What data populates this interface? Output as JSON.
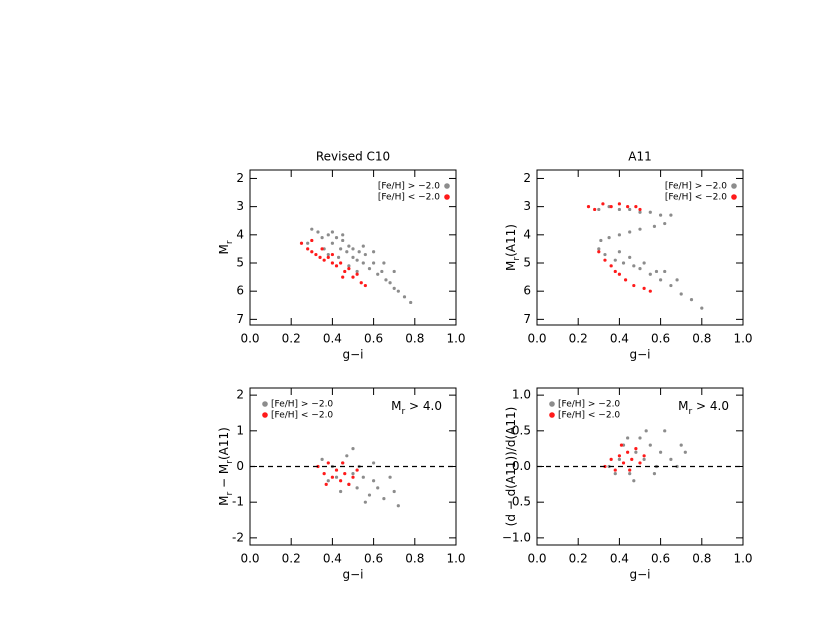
{
  "chart_data": [
    {
      "type": "scatter",
      "title": "Revised C10",
      "xlabel": "g−i",
      "ylabel": [
        {
          "text": "M"
        },
        {
          "text": "r",
          "sub": true
        }
      ],
      "xlim": [
        0,
        1
      ],
      "ylim": [
        7.2,
        1.7
      ],
      "xticks": [
        {
          "value": 0,
          "label": "0.0"
        },
        0.2,
        0.4,
        0.6,
        0.8,
        {
          "value": 1,
          "label": "1.0"
        }
      ],
      "yticks": [
        2,
        3,
        4,
        5,
        6,
        7
      ],
      "legend_loc": "upper right",
      "series": [
        {
          "name": "[Fe/H] > −2.0",
          "color": "#8c8c8c",
          "x": [
            0.3,
            0.33,
            0.35,
            0.38,
            0.4,
            0.42,
            0.44,
            0.45,
            0.47,
            0.48,
            0.5,
            0.5,
            0.52,
            0.53,
            0.55,
            0.56,
            0.58,
            0.6,
            0.62,
            0.64,
            0.66,
            0.68,
            0.7,
            0.72,
            0.75,
            0.78,
            0.4,
            0.45,
            0.36,
            0.55,
            0.6,
            0.65,
            0.43,
            0.48,
            0.38,
            0.52,
            0.7,
            0.28
          ],
          "y": [
            3.8,
            3.9,
            4.1,
            4.0,
            4.3,
            4.1,
            4.5,
            4.2,
            4.6,
            4.4,
            4.8,
            4.5,
            4.9,
            4.6,
            5.0,
            4.7,
            5.2,
            5.0,
            5.4,
            5.3,
            5.6,
            5.7,
            5.9,
            6.0,
            6.2,
            6.4,
            3.9,
            4.0,
            4.5,
            4.4,
            4.6,
            5.0,
            4.8,
            5.1,
            4.7,
            5.3,
            5.3,
            4.3
          ]
        },
        {
          "name": "[Fe/H] < −2.0",
          "color": "#ff1a1a",
          "x": [
            0.25,
            0.28,
            0.3,
            0.32,
            0.34,
            0.36,
            0.38,
            0.4,
            0.42,
            0.44,
            0.46,
            0.48,
            0.5,
            0.52,
            0.54,
            0.56,
            0.35,
            0.4,
            0.45,
            0.3
          ],
          "y": [
            4.3,
            4.5,
            4.6,
            4.7,
            4.8,
            4.9,
            4.8,
            5.0,
            5.1,
            5.0,
            5.3,
            5.2,
            5.5,
            5.4,
            5.7,
            5.8,
            4.5,
            4.7,
            5.5,
            4.2
          ]
        }
      ]
    },
    {
      "type": "scatter",
      "title": "A11",
      "xlabel": "g−i",
      "ylabel": [
        {
          "text": "M"
        },
        {
          "text": "r",
          "sub": true
        },
        {
          "text": "(A11)"
        }
      ],
      "xlim": [
        0,
        1
      ],
      "ylim": [
        7.2,
        1.7
      ],
      "xticks": [
        {
          "value": 0,
          "label": "0.0"
        },
        0.2,
        0.4,
        0.6,
        0.8,
        {
          "value": 1,
          "label": "1.0"
        }
      ],
      "yticks": [
        2,
        3,
        4,
        5,
        6,
        7
      ],
      "legend_loc": "upper right",
      "series": [
        {
          "name": "[Fe/H] > −2.0",
          "color": "#8c8c8c",
          "x": [
            0.3,
            0.35,
            0.4,
            0.45,
            0.5,
            0.55,
            0.6,
            0.65,
            0.62,
            0.57,
            0.5,
            0.45,
            0.4,
            0.35,
            0.31,
            0.3,
            0.33,
            0.38,
            0.42,
            0.47,
            0.5,
            0.55,
            0.6,
            0.65,
            0.7,
            0.75,
            0.8,
            0.52,
            0.58,
            0.62,
            0.68,
            0.45,
            0.4
          ],
          "y": [
            3.1,
            3.0,
            3.1,
            3.1,
            3.2,
            3.2,
            3.3,
            3.3,
            3.6,
            3.7,
            3.8,
            3.9,
            4.0,
            4.1,
            4.2,
            4.5,
            4.7,
            4.9,
            5.0,
            5.1,
            5.2,
            5.4,
            5.6,
            5.8,
            6.1,
            6.3,
            6.6,
            5.0,
            5.3,
            5.3,
            5.6,
            4.8,
            4.6
          ]
        },
        {
          "name": "[Fe/H] < −2.0",
          "color": "#ff1a1a",
          "x": [
            0.25,
            0.28,
            0.32,
            0.36,
            0.4,
            0.44,
            0.48,
            0.5,
            0.3,
            0.33,
            0.36,
            0.4,
            0.43,
            0.47,
            0.52,
            0.55,
            0.38
          ],
          "y": [
            3.0,
            3.1,
            2.9,
            3.0,
            2.9,
            3.0,
            3.0,
            3.1,
            4.6,
            4.9,
            5.1,
            5.4,
            5.6,
            5.8,
            5.9,
            6.0,
            5.3
          ]
        }
      ]
    },
    {
      "type": "scatter",
      "xlabel": "g−i",
      "ylabel": [
        {
          "text": "M"
        },
        {
          "text": "r",
          "sub": true
        },
        {
          "text": " − M"
        },
        {
          "text": "r",
          "sub": true
        },
        {
          "text": "(A11)"
        }
      ],
      "annotation": [
        {
          "text": "M"
        },
        {
          "text": "r",
          "sub": true
        },
        {
          "text": " > 4.0"
        }
      ],
      "xlim": [
        0,
        1
      ],
      "ylim": [
        -2.2,
        2.2
      ],
      "xticks": [
        {
          "value": 0,
          "label": "0.0"
        },
        0.2,
        0.4,
        0.6,
        0.8,
        {
          "value": 1,
          "label": "1.0"
        }
      ],
      "yticks": [
        -2,
        -1,
        0,
        1,
        2
      ],
      "hline": 0,
      "legend_loc": "upper left",
      "series": [
        {
          "name": "[Fe/H] > −2.0",
          "color": "#8c8c8c",
          "x": [
            0.35,
            0.4,
            0.42,
            0.45,
            0.48,
            0.5,
            0.52,
            0.55,
            0.58,
            0.6,
            0.62,
            0.65,
            0.7,
            0.47,
            0.53,
            0.56,
            0.44,
            0.38,
            0.68,
            0.72,
            0.5,
            0.6
          ],
          "y": [
            0.2,
            0.0,
            -0.3,
            0.1,
            -0.5,
            -0.2,
            -0.6,
            -0.3,
            -0.8,
            -0.4,
            -0.6,
            -0.9,
            -0.7,
            0.3,
            0.0,
            -1.0,
            -0.7,
            -0.4,
            -0.3,
            -1.1,
            0.5,
            0.1
          ]
        },
        {
          "name": "[Fe/H] < −2.0",
          "color": "#ff1a1a",
          "x": [
            0.33,
            0.36,
            0.38,
            0.4,
            0.42,
            0.44,
            0.46,
            0.48,
            0.5,
            0.37,
            0.45,
            0.52
          ],
          "y": [
            0.0,
            -0.2,
            0.1,
            -0.3,
            -0.1,
            -0.4,
            -0.2,
            -0.5,
            -0.3,
            -0.5,
            0.1,
            -0.1
          ]
        }
      ]
    },
    {
      "type": "scatter",
      "xlabel": "g−i",
      "ylabel": [
        {
          "text": "(d − d(A11))/d(A11)"
        }
      ],
      "annotation": [
        {
          "text": "M"
        },
        {
          "text": "r",
          "sub": true
        },
        {
          "text": " > 4.0"
        }
      ],
      "xlim": [
        0,
        1
      ],
      "ylim": [
        -1.1,
        1.1
      ],
      "xticks": [
        {
          "value": 0,
          "label": "0.0"
        },
        0.2,
        0.4,
        0.6,
        0.8,
        {
          "value": 1,
          "label": "1.0"
        }
      ],
      "yticks": [
        {
          "value": -1,
          "label": "−1.0"
        },
        -0.5,
        {
          "value": 0,
          "label": "0.0"
        },
        0.5,
        {
          "value": 1,
          "label": "1.0"
        }
      ],
      "hline": 0,
      "legend_loc": "upper left",
      "series": [
        {
          "name": "[Fe/H] > −2.0",
          "color": "#8c8c8c",
          "x": [
            0.35,
            0.4,
            0.42,
            0.45,
            0.48,
            0.5,
            0.52,
            0.55,
            0.58,
            0.6,
            0.62,
            0.65,
            0.7,
            0.47,
            0.53,
            0.57,
            0.44,
            0.38,
            0.68,
            0.72
          ],
          "y": [
            0.0,
            0.1,
            0.3,
            -0.1,
            0.2,
            0.4,
            0.1,
            0.3,
            0.0,
            0.2,
            0.5,
            0.1,
            0.3,
            -0.2,
            0.5,
            -0.1,
            0.4,
            -0.1,
            0.0,
            0.2
          ]
        },
        {
          "name": "[Fe/H] < −2.0",
          "color": "#ff1a1a",
          "x": [
            0.33,
            0.36,
            0.38,
            0.4,
            0.42,
            0.44,
            0.46,
            0.48,
            0.5,
            0.41,
            0.45,
            0.52
          ],
          "y": [
            0.0,
            0.1,
            -0.05,
            0.15,
            0.05,
            0.2,
            0.1,
            0.25,
            0.05,
            0.3,
            -0.05,
            0.15
          ]
        }
      ]
    }
  ]
}
